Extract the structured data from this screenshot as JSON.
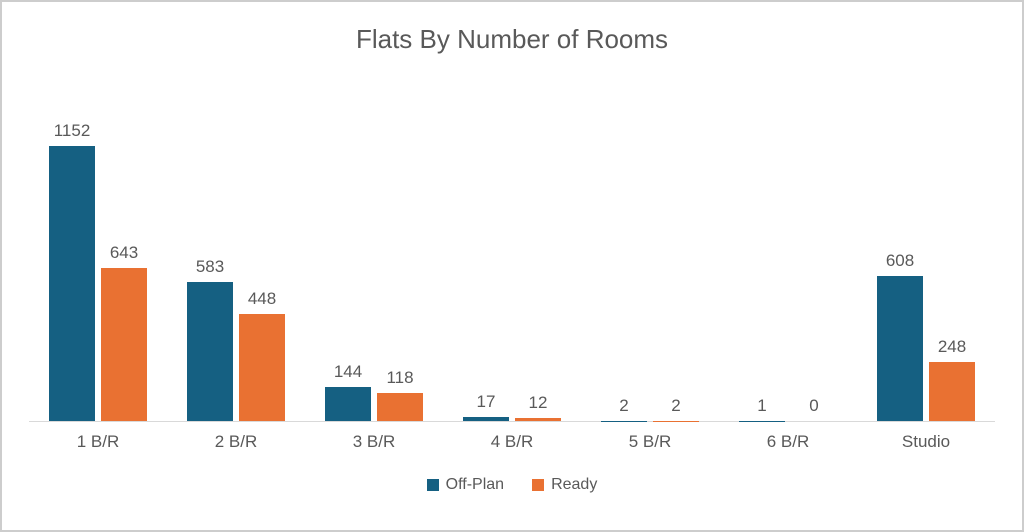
{
  "frame": {
    "background": "#ffffff",
    "border_color": "#cdcdcd"
  },
  "chart_data": {
    "type": "bar",
    "title": "Flats By Number of Rooms",
    "categories": [
      "1 B/R",
      "2 B/R",
      "3 B/R",
      "4 B/R",
      "5 B/R",
      "6 B/R",
      "Studio"
    ],
    "series": [
      {
        "name": "Off-Plan",
        "color": "#156082",
        "values": [
          1152,
          583,
          144,
          17,
          2,
          1,
          608
        ]
      },
      {
        "name": "Ready",
        "color": "#E97132",
        "values": [
          643,
          448,
          118,
          12,
          2,
          0,
          248
        ]
      }
    ],
    "ylim": [
      0,
      1200
    ],
    "xlabel": "",
    "ylabel": "",
    "grid": false,
    "data_labels": "outside-end",
    "legend_position": "bottom",
    "text_color": "#595959",
    "axis_line_color": "#d9d9d9"
  }
}
